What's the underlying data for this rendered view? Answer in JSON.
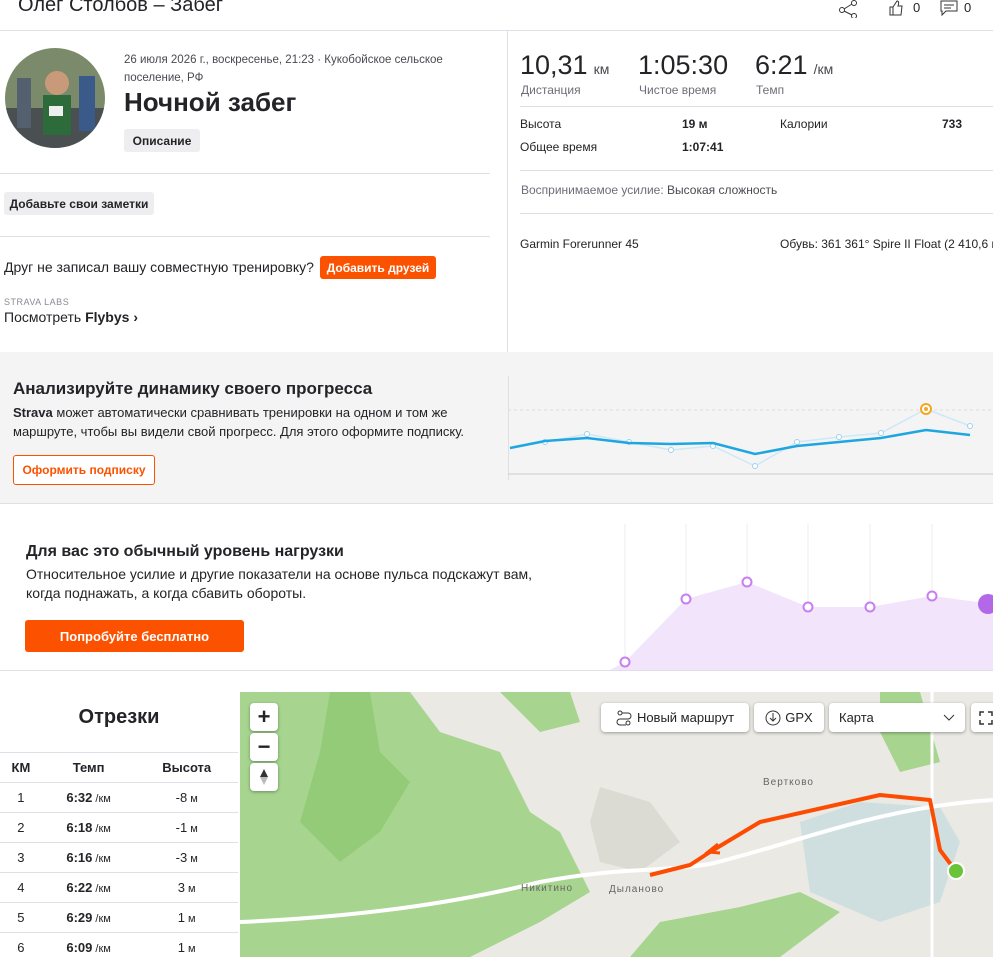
{
  "header": {
    "title": "Олег Столбов – Забег",
    "likes": "0",
    "comments": "0"
  },
  "activity": {
    "date_location": "26 июля 2026 г., воскресенье, 21:23 · Кукобойское сельское поселение, РФ",
    "name": "Ночной забег",
    "description_button": "Описание",
    "notes_button": "Добавьте свои заметки",
    "friend_prompt": "Друг не записал вашу совместную тренировку?",
    "add_friends_button": "Добавить друзей",
    "labs_label": "STRAVA LABS",
    "flybys_prefix": "Посмотреть",
    "flybys_name": "Flybys"
  },
  "stats": {
    "primary": [
      {
        "value": "10,31",
        "unit": "км",
        "label": "Дистанция"
      },
      {
        "value": "1:05:30",
        "unit": "",
        "label": "Чистое время"
      },
      {
        "value": "6:21",
        "unit": "/км",
        "label": "Темп"
      }
    ],
    "elevation_label": "Высота",
    "elevation_value": "19 м",
    "calories_label": "Калории",
    "calories_value": "733",
    "elapsed_label": "Общее время",
    "elapsed_value": "1:07:41",
    "effort_label": "Воспринимаемое усилие:",
    "effort_value": "Высокая сложность",
    "device": "Garmin Forerunner 45",
    "shoes": "Обувь: 361 361° Spire II Float (2 410,6 км)"
  },
  "promo_progress": {
    "title": "Анализируйте динамику своего прогресса",
    "brand": "Strava",
    "text": "может автоматически сравнивать тренировки на одном и том же маршруте, чтобы вы видели свой прогресс. Для этого оформите подписку.",
    "button": "Оформить подписку"
  },
  "promo_effort": {
    "title": "Для вас это обычный уровень нагрузки",
    "text": "Относительное усилие и другие показатели на основе пульса подскажут вам, когда поднажать, а когда сбавить обороты.",
    "button": "Попробуйте бесплатно"
  },
  "splits": {
    "title": "Отрезки",
    "columns": [
      "КМ",
      "Темп",
      "Высота"
    ],
    "pace_unit": "/км",
    "elevation_unit": "м",
    "rows": [
      [
        "1",
        "6:32",
        "-8"
      ],
      [
        "2",
        "6:18",
        "-1"
      ],
      [
        "3",
        "6:16",
        "-3"
      ],
      [
        "4",
        "6:22",
        "3"
      ],
      [
        "5",
        "6:29",
        "1"
      ],
      [
        "6",
        "6:09",
        "1"
      ]
    ]
  },
  "map": {
    "new_route": "Новый маршрут",
    "gpx": "GPX",
    "layer": "Карта",
    "zoom_in": "+",
    "zoom_out": "−",
    "places": [
      "Вертково",
      "Никитино",
      "Дыланово"
    ]
  }
}
